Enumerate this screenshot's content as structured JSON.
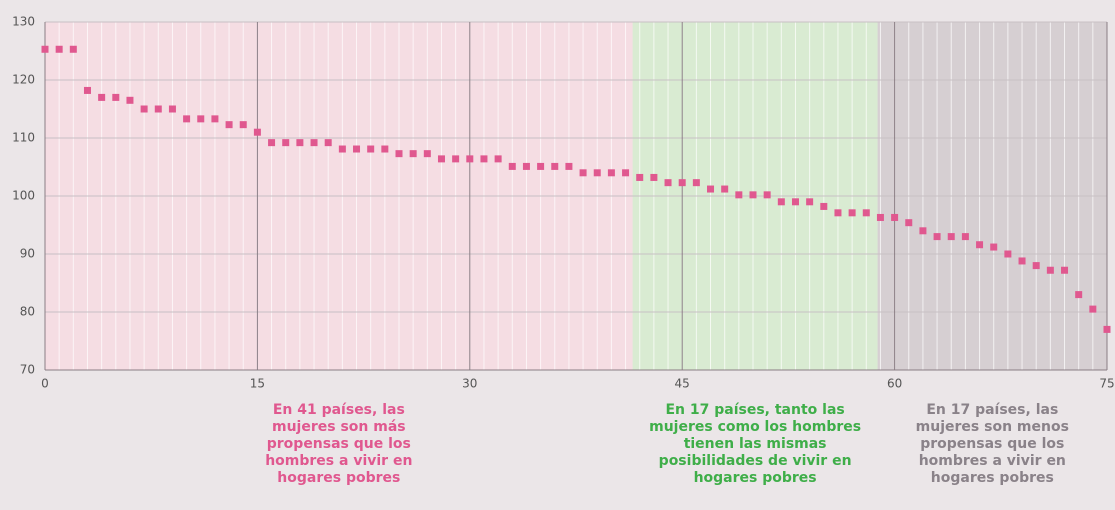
{
  "chart_data": {
    "type": "scatter",
    "x": [
      0,
      1,
      2,
      3,
      4,
      5,
      6,
      7,
      8,
      9,
      10,
      11,
      12,
      13,
      14,
      15,
      16,
      17,
      18,
      19,
      20,
      21,
      22,
      23,
      24,
      25,
      26,
      27,
      28,
      29,
      30,
      31,
      32,
      33,
      34,
      35,
      36,
      37,
      38,
      39,
      40,
      41,
      42,
      43,
      44,
      45,
      46,
      47,
      48,
      49,
      50,
      51,
      52,
      53,
      54,
      55,
      56,
      57,
      58,
      59,
      60,
      61,
      62,
      63,
      64,
      65,
      66,
      67,
      68,
      69,
      70,
      71,
      72,
      73,
      74,
      75
    ],
    "series": [
      {
        "color": "#e0588f",
        "values": [
          125.3,
          125.3,
          125.3,
          118.2,
          117,
          117,
          116.5,
          115,
          115,
          115,
          113.3,
          113.3,
          113.3,
          112.3,
          112.3,
          111,
          109.2,
          109.2,
          109.2,
          109.2,
          109.2,
          108.1,
          108.1,
          108.1,
          108.1,
          107.3,
          107.3,
          107.3,
          106.4,
          106.4,
          106.4,
          106.4,
          106.4,
          105.1,
          105.1,
          105.1,
          105.1,
          105.1,
          104,
          104,
          104,
          104,
          103.2,
          103.2,
          102.3,
          102.3,
          102.3,
          101.2,
          101.2,
          100.2,
          100.2,
          100.2,
          99,
          99,
          99,
          98.2,
          97.1,
          97.1,
          97.1,
          96.3,
          96.3,
          95.4,
          94,
          93,
          93,
          93,
          91.6,
          91.2,
          90,
          88.8,
          88,
          87.2,
          87.2,
          83,
          80.5,
          77
        ]
      }
    ],
    "xlim": [
      0,
      75
    ],
    "xticks": [
      0,
      15,
      30,
      45,
      60,
      75
    ],
    "ylim": [
      70,
      130
    ],
    "yticks": [
      70,
      80,
      90,
      100,
      110,
      120,
      130
    ],
    "grid": true,
    "regions": [
      {
        "x": [
          0,
          41.5
        ],
        "color": "#f5dde3",
        "label_color": "#e0588f",
        "annotation": [
          "En 41 países, las",
          "mujeres son más",
          "propensas que los",
          "hombres a vivir en",
          "hogares pobres"
        ]
      },
      {
        "x": [
          41.5,
          58.8
        ],
        "color": "#d9ebd2",
        "label_color": "#3fae49",
        "annotation": [
          "En 17 países, tanto las",
          "mujeres como los hombres",
          "tienen las mismas",
          "posibilidades de vivir en",
          "hogares pobres"
        ]
      },
      {
        "x": [
          58.8,
          75
        ],
        "color": "#d6cfd2",
        "label_color": "#8a8289",
        "annotation": [
          "En 17 países, las",
          "mujeres son menos",
          "propensas que los",
          "hombres a vivir en",
          "hogares pobres"
        ]
      }
    ]
  }
}
